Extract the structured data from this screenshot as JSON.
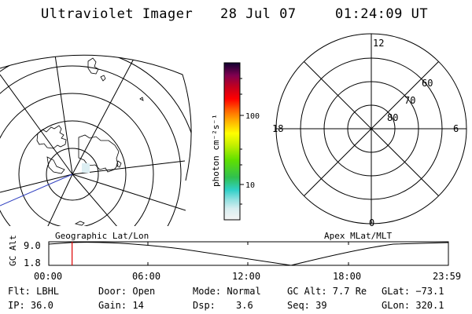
{
  "header": {
    "title": "Ultraviolet Imager",
    "date": "28 Jul 07",
    "time": "01:24:09 UT"
  },
  "colorbar": {
    "label": "photon cm⁻²s⁻¹",
    "ticks": [
      "100",
      "10"
    ]
  },
  "polar": {
    "hour_labels": [
      "12",
      "18",
      "6",
      "0"
    ],
    "lat_labels": [
      "60",
      "70",
      "80"
    ]
  },
  "timeline": {
    "left_caption": "Geographic Lat/Lon",
    "right_caption": "Apex MLat/MLT",
    "ylabel": "GC Alt",
    "y_ticks": [
      "9.0",
      "1.8"
    ],
    "x_ticks": [
      "00:00",
      "06:00",
      "12:00",
      "18:00",
      "23:59"
    ],
    "current_time_hours": 1.4
  },
  "info": {
    "filter": "Flt: LBHL",
    "door": "Door: Open",
    "mode": "Mode: Normal",
    "gc_alt": "GC Alt: 7.7 Re",
    "glat": "GLat: −73.1",
    "ip": "IP: 36.0",
    "gain": "Gain: 14",
    "dsp_label": "Dsp:",
    "dsp_value": "3.6",
    "seq": "Seq: 39",
    "glon": "GLon: 320.1"
  },
  "colors": {
    "foreground": "#000000",
    "nadir_line": "#3040c0",
    "marker": "#dd0000"
  }
}
